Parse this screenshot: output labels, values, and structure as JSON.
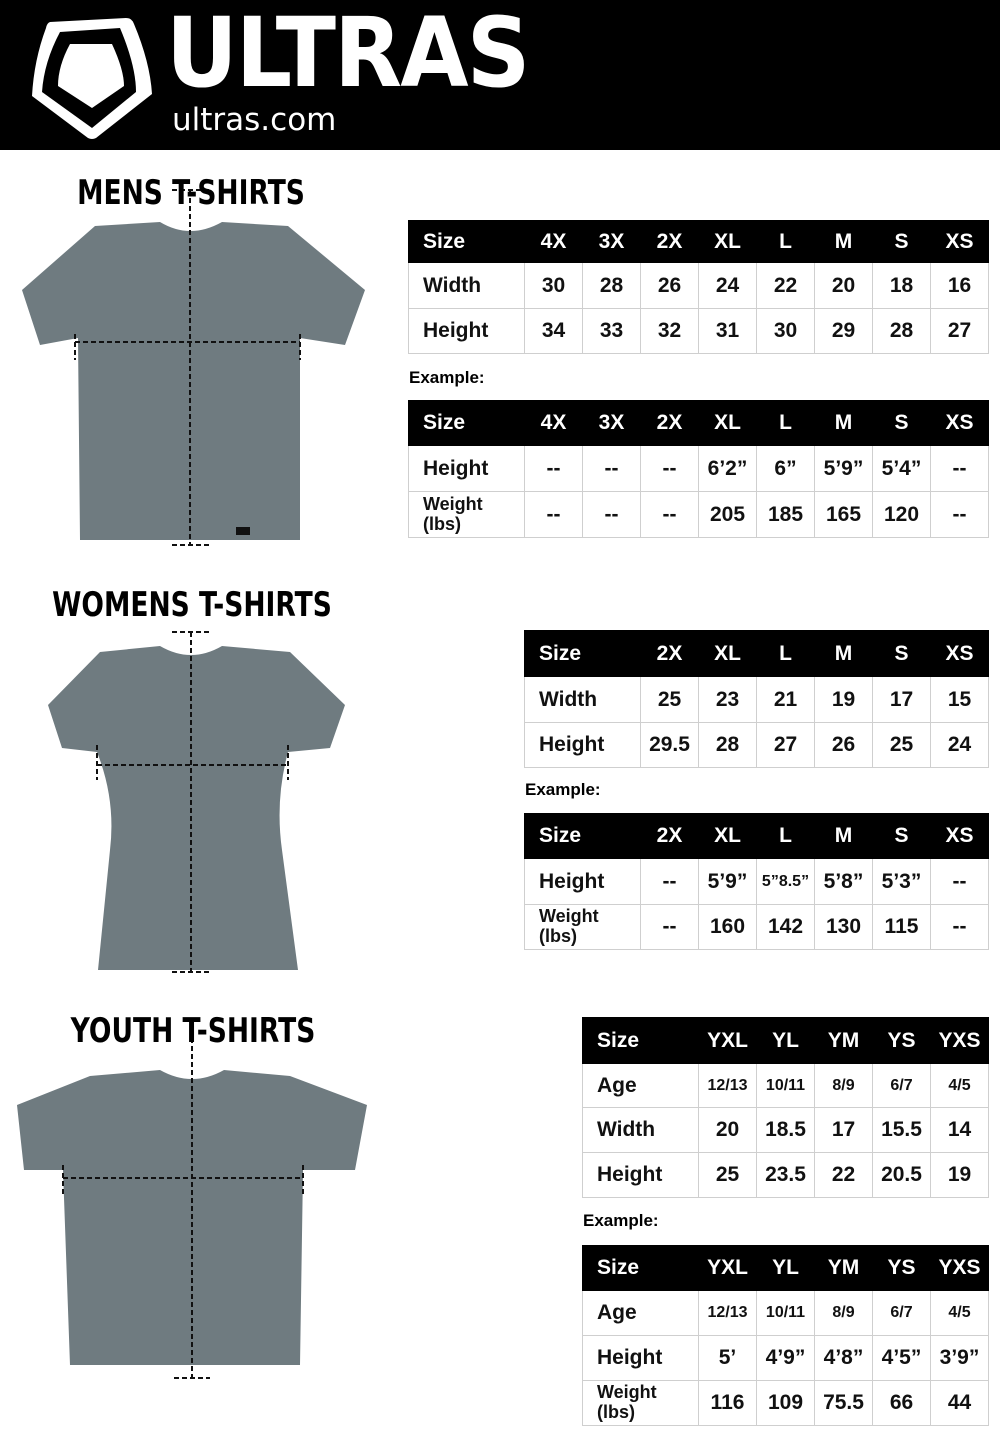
{
  "header": {
    "brand": "ULTRAS",
    "url": "ultras.com",
    "logo_icon": "shield-logo-icon"
  },
  "colors": {
    "header_bg": "#000000",
    "shirt": "#6f7b80",
    "table_header": "#000000"
  },
  "sections": [
    {
      "title": "MENS T-SHIRTS",
      "example_label": "Example:",
      "size_table": {
        "header": [
          "Size",
          "4X",
          "3X",
          "2X",
          "XL",
          "L",
          "M",
          "S",
          "XS"
        ],
        "rows": [
          [
            "Width",
            "30",
            "28",
            "26",
            "24",
            "22",
            "20",
            "18",
            "16"
          ],
          [
            "Height",
            "34",
            "33",
            "32",
            "31",
            "30",
            "29",
            "28",
            "27"
          ]
        ]
      },
      "example_table": {
        "header": [
          "Size",
          "4X",
          "3X",
          "2X",
          "XL",
          "L",
          "M",
          "S",
          "XS"
        ],
        "rows": [
          [
            "Height",
            "--",
            "--",
            "--",
            "6’2”",
            "6”",
            "5’9”",
            "5’4”",
            "--"
          ],
          [
            "Weight\n(lbs)",
            "--",
            "--",
            "--",
            "205",
            "185",
            "165",
            "120",
            "--"
          ]
        ]
      }
    },
    {
      "title": "WOMENS T-SHIRTS",
      "example_label": "Example:",
      "size_table": {
        "header": [
          "Size",
          "2X",
          "XL",
          "L",
          "M",
          "S",
          "XS"
        ],
        "rows": [
          [
            "Width",
            "25",
            "23",
            "21",
            "19",
            "17",
            "15"
          ],
          [
            "Height",
            "29.5",
            "28",
            "27",
            "26",
            "25",
            "24"
          ]
        ]
      },
      "example_table": {
        "header": [
          "Size",
          "2X",
          "XL",
          "L",
          "M",
          "S",
          "XS"
        ],
        "rows": [
          [
            "Height",
            "--",
            "5’9”",
            "5”8.5”",
            "5’8”",
            "5’3”",
            "--"
          ],
          [
            "Weight\n(lbs)",
            "--",
            "160",
            "142",
            "130",
            "115",
            "--"
          ]
        ]
      }
    },
    {
      "title": "YOUTH T-SHIRTS",
      "example_label": "Example:",
      "size_table": {
        "header": [
          "Size",
          "YXL",
          "YL",
          "YM",
          "YS",
          "YXS"
        ],
        "rows": [
          [
            "Age",
            "12/13",
            "10/11",
            "8/9",
            "6/7",
            "4/5"
          ],
          [
            "Width",
            "20",
            "18.5",
            "17",
            "15.5",
            "14"
          ],
          [
            "Height",
            "25",
            "23.5",
            "22",
            "20.5",
            "19"
          ]
        ]
      },
      "example_table": {
        "header": [
          "Size",
          "YXL",
          "YL",
          "YM",
          "YS",
          "YXS"
        ],
        "rows": [
          [
            "Age",
            "12/13",
            "10/11",
            "8/9",
            "6/7",
            "4/5"
          ],
          [
            "Height",
            "5’",
            "4’9”",
            "4’8”",
            "4’5”",
            "3’9”"
          ],
          [
            "Weight\n(lbs)",
            "116",
            "109",
            "75.5",
            "66",
            "44"
          ]
        ]
      }
    }
  ]
}
